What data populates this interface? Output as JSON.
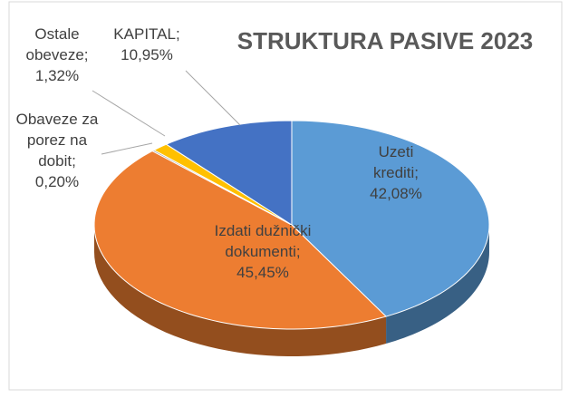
{
  "chart_data": {
    "type": "pie3d",
    "title": "STRUKTURA PASIVE 2023",
    "categories": [
      "Uzeti krediti;",
      "Izdati dužnički dokumenti;",
      "Obaveze za porez na dobit;",
      "Ostale obeveze;",
      "KAPITAL;"
    ],
    "values": [
      42.08,
      45.45,
      0.2,
      1.32,
      10.95
    ],
    "value_labels": [
      "42,08%",
      "45,45%",
      "0,20%",
      "1,32%",
      "10,95%"
    ],
    "colors": [
      "#5b9bd5",
      "#ed7d31",
      "#a5a5a5",
      "#ffc000",
      "#4472c4"
    ]
  }
}
